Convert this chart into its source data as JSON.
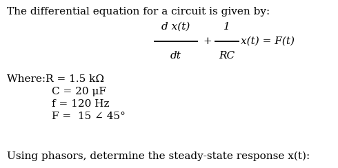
{
  "background_color": "#ffffff",
  "title_text": "The differential equation for a circuit is given by:",
  "fontsize": 11,
  "frac1_num": "d x(t)",
  "frac1_den": "dt",
  "frac2_num": "1",
  "frac2_den": "RC",
  "plus_text": "+",
  "rest_text": "x(t) = F(t)",
  "where_line0": "Where:R = 1.5 kΩ",
  "where_line1": "C = 20 μF",
  "where_line2": "f = 120 Hz",
  "where_line3": "F =  15 ∠ 45°",
  "footer_text": "Using phasors, determine the steady-state response x(t):"
}
